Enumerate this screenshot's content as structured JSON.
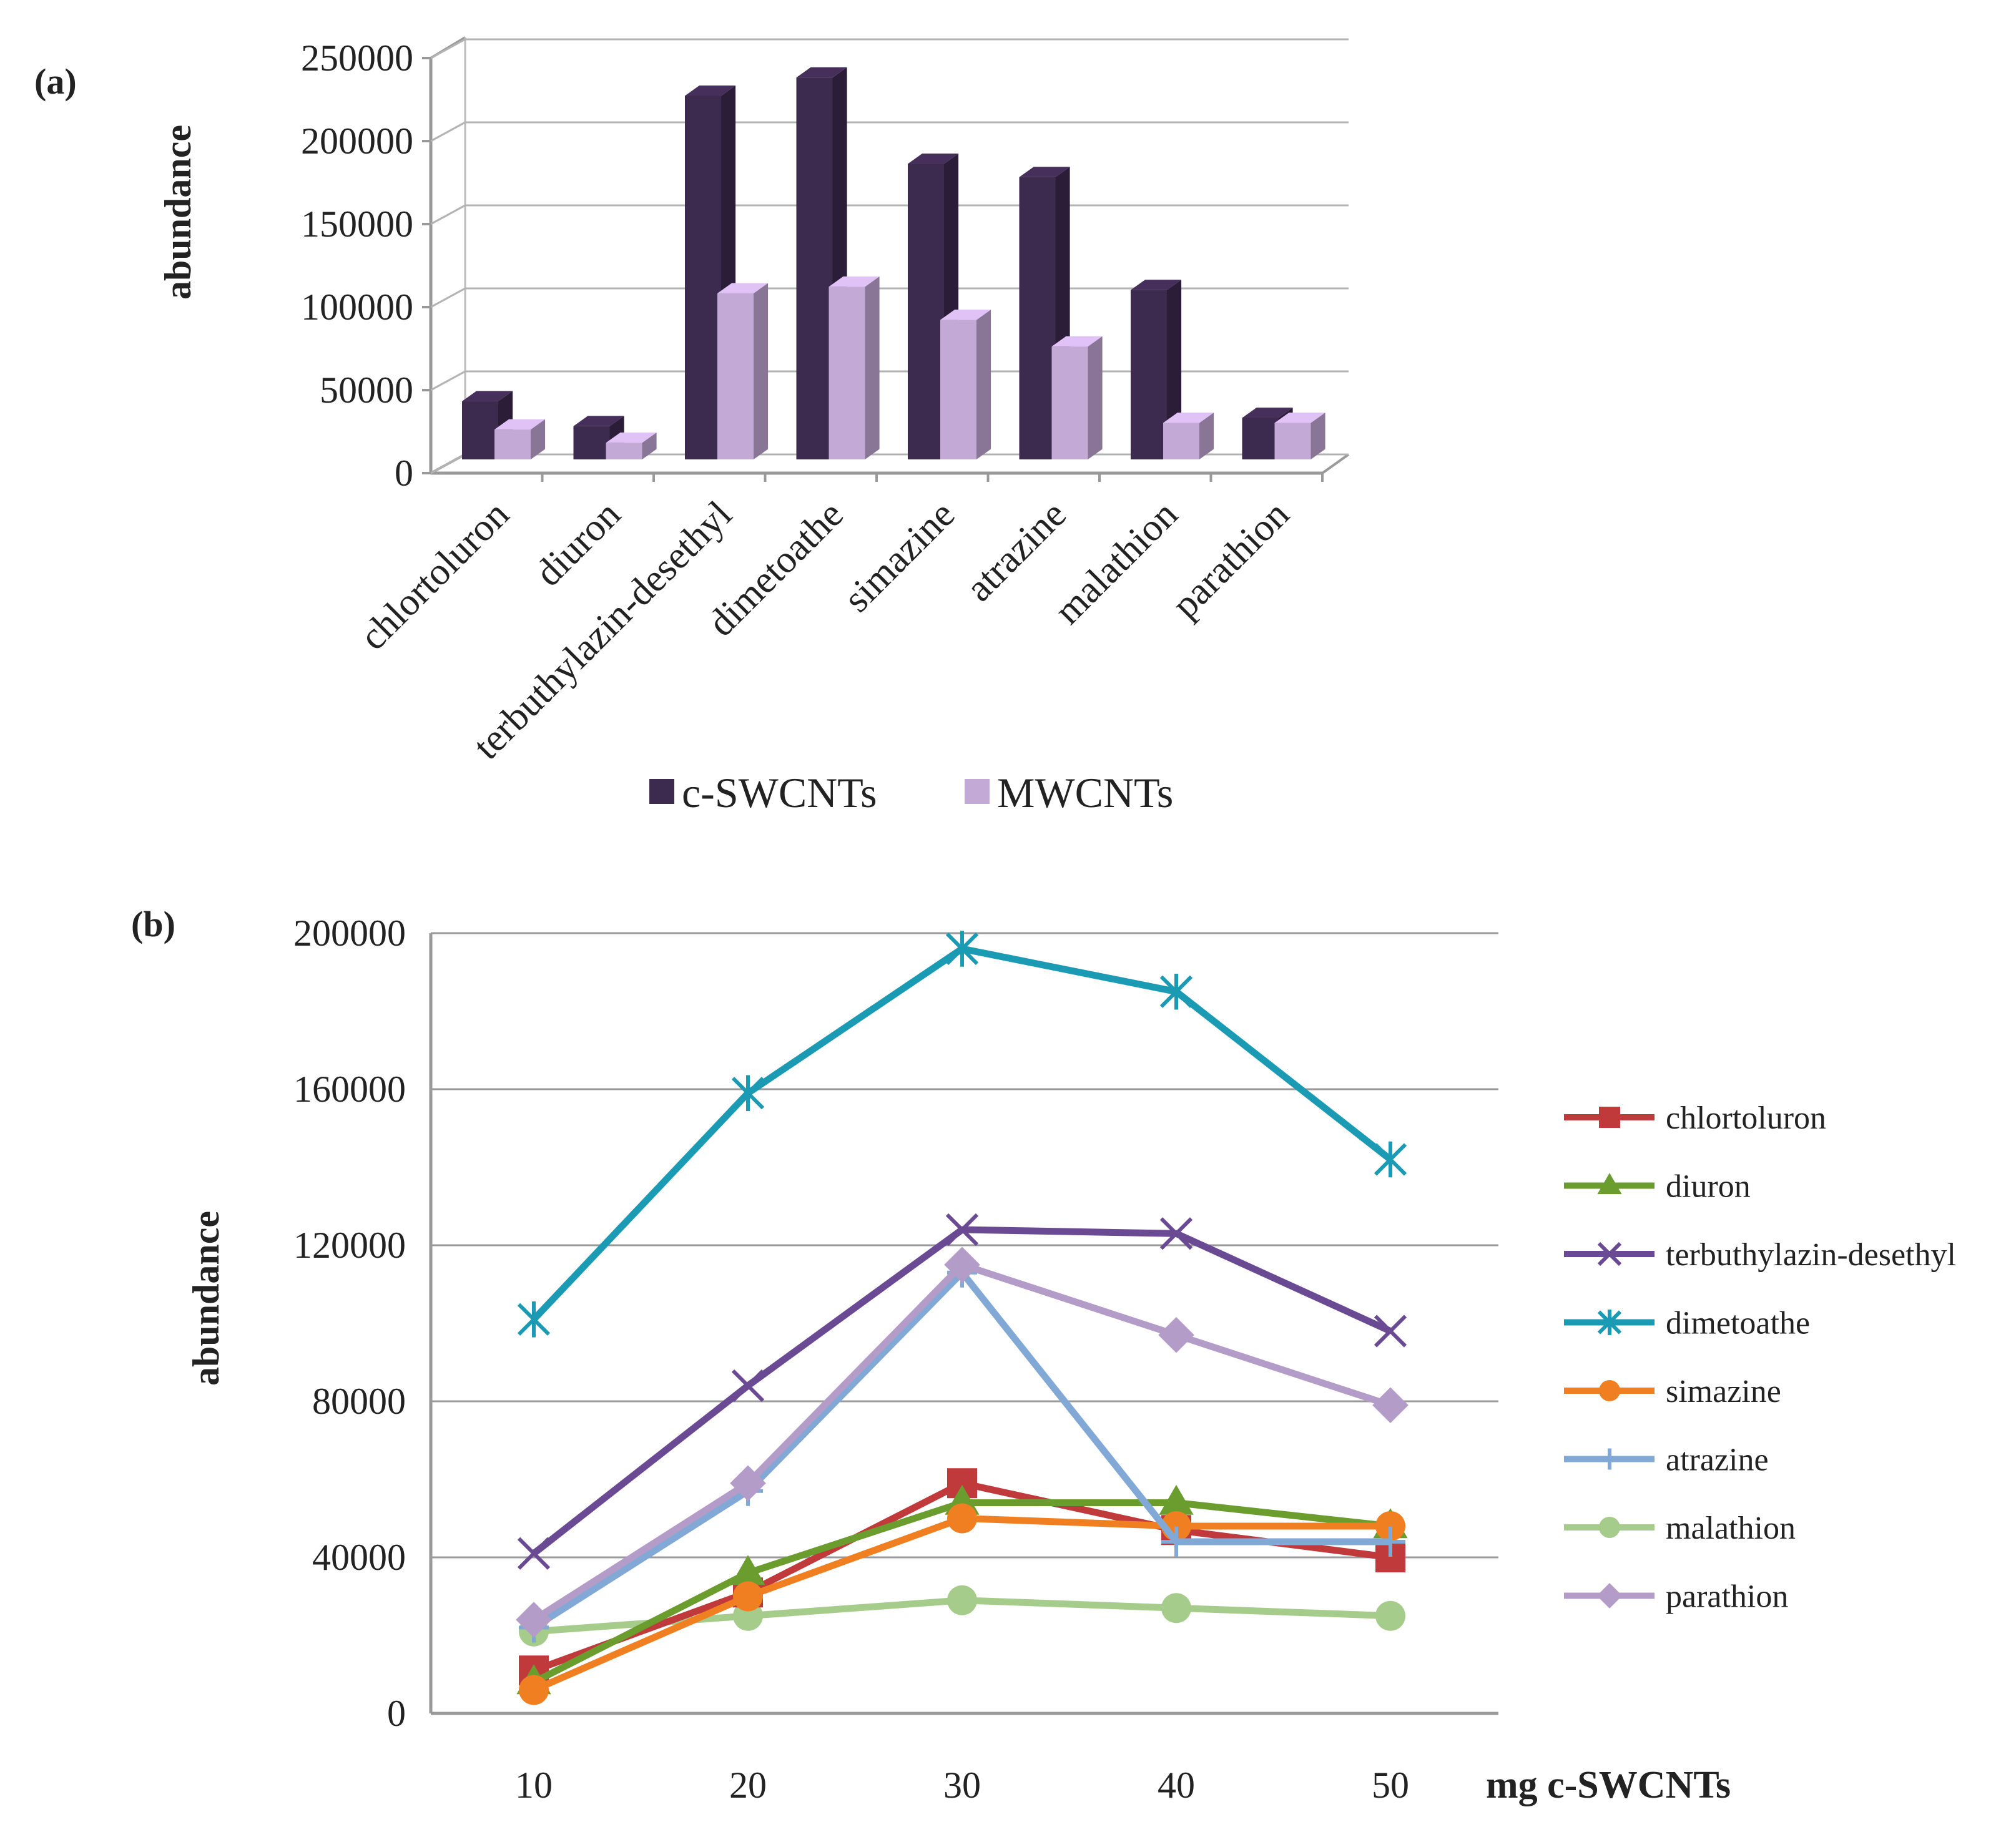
{
  "chart_data": [
    {
      "panel_label": "(a)",
      "type": "bar",
      "title": "",
      "ylabel": "abundance",
      "xlabel": "",
      "ylim": [
        0,
        250000
      ],
      "yticks": [
        "0",
        "50000",
        "100000",
        "150000",
        "200000",
        "250000"
      ],
      "categories": [
        "chlortoluron",
        "diuron",
        "terbuthylazin-desethyl",
        "dimetoathe",
        "simazine",
        "atrazine",
        "malathion",
        "parathion"
      ],
      "series": [
        {
          "name": "c-SWCNTs",
          "color": "#3d2a4f",
          "values": [
            35000,
            20000,
            219000,
            230000,
            178000,
            170000,
            102000,
            25000
          ]
        },
        {
          "name": "MWCNTs",
          "color": "#c3a9d6",
          "values": [
            18000,
            10000,
            100000,
            104000,
            84000,
            68000,
            22000,
            22000
          ]
        }
      ],
      "legend_position": "bottom"
    },
    {
      "panel_label": "(b)",
      "type": "line",
      "title": "",
      "ylabel": "abundance",
      "xlabel": "mg c-SWCNTs",
      "x": [
        10,
        20,
        30,
        40,
        50
      ],
      "xticks": [
        "10",
        "20",
        "30",
        "40",
        "50"
      ],
      "ylim": [
        0,
        200000
      ],
      "yticks": [
        "0",
        "40000",
        "80000",
        "120000",
        "160000",
        "200000"
      ],
      "series": [
        {
          "name": "chlortoluron",
          "color": "#c0393b",
          "marker": "square",
          "values": [
            11000,
            31000,
            59000,
            47000,
            40000
          ]
        },
        {
          "name": "diuron",
          "color": "#6b9c2e",
          "marker": "triangle",
          "values": [
            8000,
            36000,
            54000,
            54000,
            48000
          ]
        },
        {
          "name": "terbuthylazin-desethyl",
          "color": "#6a4a92",
          "marker": "x",
          "values": [
            41000,
            84000,
            124000,
            123000,
            98000
          ]
        },
        {
          "name": "dimetoathe",
          "color": "#1b9bb3",
          "marker": "star",
          "values": [
            101000,
            159000,
            196000,
            185000,
            142000
          ]
        },
        {
          "name": "simazine",
          "color": "#f07f22",
          "marker": "circle",
          "values": [
            6000,
            30000,
            50000,
            48000,
            48000
          ]
        },
        {
          "name": "atrazine",
          "color": "#82a9d6",
          "marker": "plus",
          "values": [
            22000,
            57000,
            113000,
            44000,
            44000
          ]
        },
        {
          "name": "malathion",
          "color": "#a6cc8c",
          "marker": "circle",
          "values": [
            21000,
            25000,
            29000,
            27000,
            25000
          ]
        },
        {
          "name": "parathion",
          "color": "#b49cc8",
          "marker": "diamond",
          "values": [
            24000,
            59000,
            115000,
            97000,
            79000
          ]
        }
      ],
      "legend_position": "right"
    }
  ]
}
